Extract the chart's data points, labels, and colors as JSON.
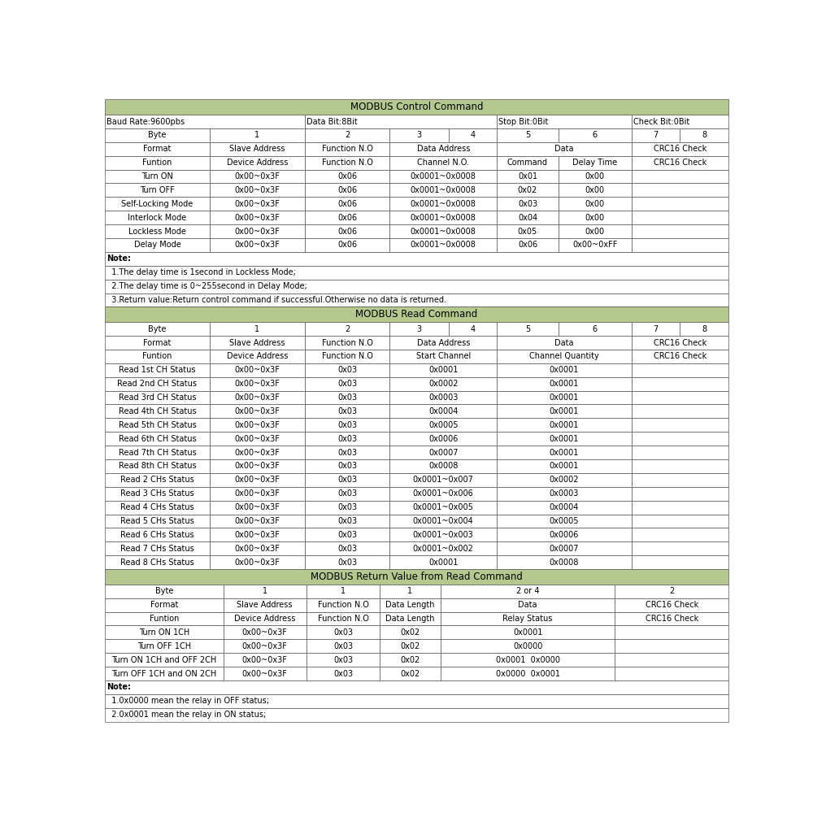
{
  "GREEN": "#b5c98e",
  "WHITE": "#ffffff",
  "BLACK": "#000000",
  "section1_title": "MODBUS Control Command",
  "section2_title": "MODBUS Read Command",
  "section3_title": "MODBUS Return Value from Read Command",
  "ctrl_notes": [
    "Note:",
    "  1.The delay time is 1second in Lockless Mode;",
    "  2.The delay time is 0~255second in Delay Mode;",
    "  3.Return value:Return control command if successful.Otherwise no data is returned."
  ],
  "ctrl_data": [
    [
      "Turn ON",
      "0x00~0x3F",
      "0x06",
      "0x0001~0x0008",
      "0x01",
      "0x00",
      ""
    ],
    [
      "Turn OFF",
      "0x00~0x3F",
      "0x06",
      "0x0001~0x0008",
      "0x02",
      "0x00",
      ""
    ],
    [
      "Self-Locking Mode",
      "0x00~0x3F",
      "0x06",
      "0x0001~0x0008",
      "0x03",
      "0x00",
      ""
    ],
    [
      "Interlock Mode",
      "0x00~0x3F",
      "0x06",
      "0x0001~0x0008",
      "0x04",
      "0x00",
      ""
    ],
    [
      "Lockless Mode",
      "0x00~0x3F",
      "0x06",
      "0x0001~0x0008",
      "0x05",
      "0x00",
      ""
    ],
    [
      "Delay Mode",
      "0x00~0x3F",
      "0x06",
      "0x0001~0x0008",
      "0x06",
      "0x00~0xFF",
      ""
    ]
  ],
  "read_data": [
    [
      "Read 1st CH Status",
      "0x00~0x3F",
      "0x03",
      "0x0001",
      "0x0001"
    ],
    [
      "Read 2nd CH Status",
      "0x00~0x3F",
      "0x03",
      "0x0002",
      "0x0001"
    ],
    [
      "Read 3rd CH Status",
      "0x00~0x3F",
      "0x03",
      "0x0003",
      "0x0001"
    ],
    [
      "Read 4th CH Status",
      "0x00~0x3F",
      "0x03",
      "0x0004",
      "0x0001"
    ],
    [
      "Read 5th CH Status",
      "0x00~0x3F",
      "0x03",
      "0x0005",
      "0x0001"
    ],
    [
      "Read 6th CH Status",
      "0x00~0x3F",
      "0x03",
      "0x0006",
      "0x0001"
    ],
    [
      "Read 7th CH Status",
      "0x00~0x3F",
      "0x03",
      "0x0007",
      "0x0001"
    ],
    [
      "Read 8th CH Status",
      "0x00~0x3F",
      "0x03",
      "0x0008",
      "0x0001"
    ],
    [
      "Read 2 CHs Status",
      "0x00~0x3F",
      "0x03",
      "0x0001~0x007",
      "0x0002"
    ],
    [
      "Read 3 CHs Status",
      "0x00~0x3F",
      "0x03",
      "0x0001~0x006",
      "0x0003"
    ],
    [
      "Read 4 CHs Status",
      "0x00~0x3F",
      "0x03",
      "0x0001~0x005",
      "0x0004"
    ],
    [
      "Read 5 CHs Status",
      "0x00~0x3F",
      "0x03",
      "0x0001~0x004",
      "0x0005"
    ],
    [
      "Read 6 CHs Status",
      "0x00~0x3F",
      "0x03",
      "0x0001~0x003",
      "0x0006"
    ],
    [
      "Read 7 CHs Status",
      "0x00~0x3F",
      "0x03",
      "0x0001~0x002",
      "0x0007"
    ],
    [
      "Read 8 CHs Status",
      "0x00~0x3F",
      "0x03",
      "0x0001",
      "0x0008"
    ]
  ],
  "ret_data": [
    [
      "Turn ON 1CH",
      "0x00~0x3F",
      "0x03",
      "0x02",
      "0x0001",
      ""
    ],
    [
      "Turn OFF 1CH",
      "0x00~0x3F",
      "0x03",
      "0x02",
      "0x0000",
      ""
    ],
    [
      "Turn ON 1CH and OFF 2CH",
      "0x00~0x3F",
      "0x03",
      "0x02",
      "0x0001  0x0000",
      ""
    ],
    [
      "Turn OFF 1CH and ON 2CH",
      "0x00~0x3F",
      "0x03",
      "0x02",
      "0x0000  0x0001",
      ""
    ]
  ],
  "ret_notes": [
    "Note:",
    "  1.0x0000 mean the relay in OFF status;",
    "  2.0x0001 mean the relay in ON status;"
  ]
}
